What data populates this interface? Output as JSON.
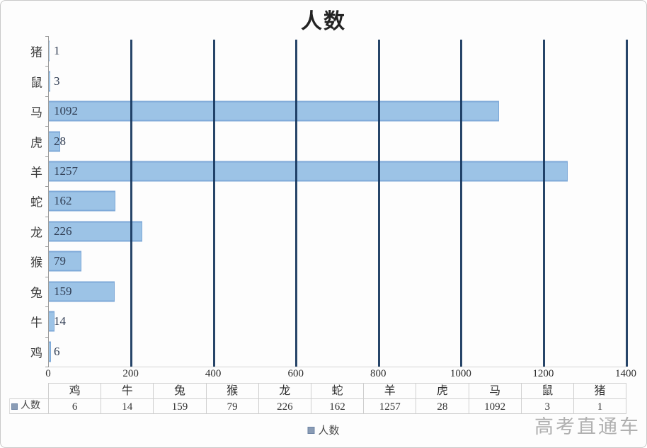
{
  "title": "人数",
  "legend": {
    "label": "人数"
  },
  "watermark": "高考直通车",
  "colors": {
    "bar_fill": "#9cc3e6",
    "bar_border": "#7ea9d8",
    "gridline": "#17375e",
    "table_border": "#cfcfcf",
    "legend_swatch": "#8a9cb5",
    "watermark_text": "#a3a3a3"
  },
  "chart_data": {
    "type": "bar",
    "orientation": "horizontal",
    "title": "人数",
    "series_name": "人数",
    "categories_top_to_bottom": [
      "猪",
      "鼠",
      "马",
      "虎",
      "羊",
      "蛇",
      "龙",
      "猴",
      "兔",
      "牛",
      "鸡"
    ],
    "values_top_to_bottom": [
      1,
      3,
      1092,
      28,
      1257,
      162,
      226,
      79,
      159,
      14,
      6
    ],
    "xlim": [
      0,
      1400
    ],
    "x_ticks": [
      0,
      200,
      400,
      600,
      800,
      1000,
      1200,
      1400
    ],
    "grid": "vertical",
    "legend_position": "bottom",
    "data_labels": "inside-base"
  },
  "table": {
    "row_label": "人数",
    "columns": [
      "鸡",
      "牛",
      "兔",
      "猴",
      "龙",
      "蛇",
      "羊",
      "虎",
      "马",
      "鼠",
      "猪"
    ],
    "values": [
      "6",
      "14",
      "159",
      "79",
      "226",
      "162",
      "1257",
      "28",
      "1092",
      "3",
      "1"
    ]
  }
}
